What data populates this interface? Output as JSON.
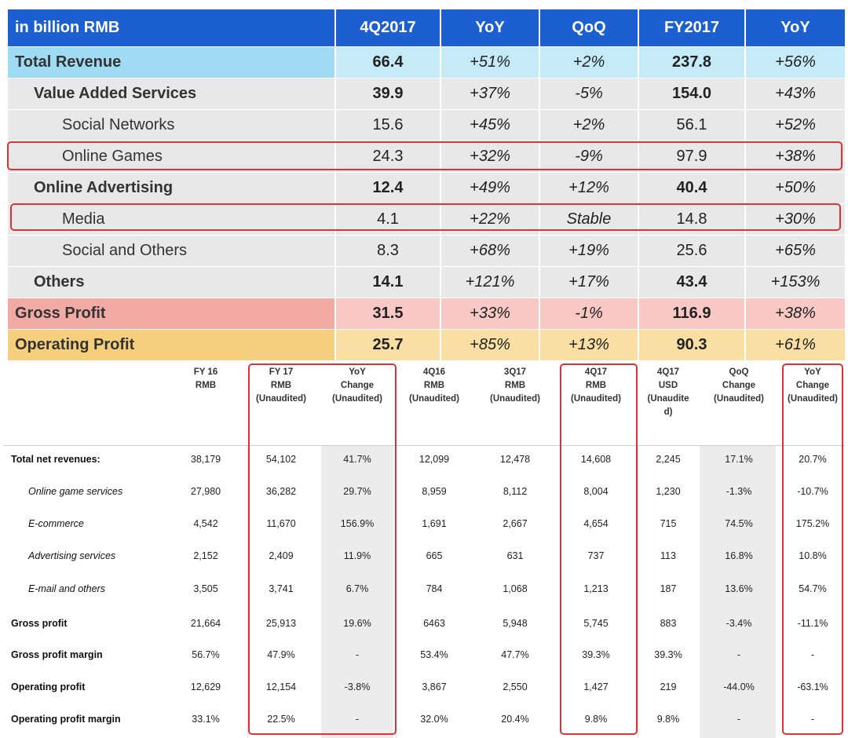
{
  "top_table": {
    "headers": [
      "in billion RMB",
      "4Q2017",
      "YoY",
      "QoQ",
      "FY2017",
      "YoY"
    ],
    "rows": [
      {
        "label": "Total Revenue",
        "q": "66.4",
        "yoy": "+51%",
        "qoq": "+2%",
        "fy": "237.8",
        "fyyoy": "+56%"
      },
      {
        "label": "Value Added Services",
        "q": "39.9",
        "yoy": "+37%",
        "qoq": "-5%",
        "fy": "154.0",
        "fyyoy": "+43%"
      },
      {
        "label": "Social Networks",
        "q": "15.6",
        "yoy": "+45%",
        "qoq": "+2%",
        "fy": "56.1",
        "fyyoy": "+52%"
      },
      {
        "label": "Online Games",
        "q": "24.3",
        "yoy": "+32%",
        "qoq": "-9%",
        "fy": "97.9",
        "fyyoy": "+38%"
      },
      {
        "label": "Online Advertising",
        "q": "12.4",
        "yoy": "+49%",
        "qoq": "+12%",
        "fy": "40.4",
        "fyyoy": "+50%"
      },
      {
        "label": "Media",
        "q": "4.1",
        "yoy": "+22%",
        "qoq": "Stable",
        "fy": "14.8",
        "fyyoy": "+30%"
      },
      {
        "label": "Social and Others",
        "q": "8.3",
        "yoy": "+68%",
        "qoq": "+19%",
        "fy": "25.6",
        "fyyoy": "+65%"
      },
      {
        "label": "Others",
        "q": "14.1",
        "yoy": "+121%",
        "qoq": "+17%",
        "fy": "43.4",
        "fyyoy": "+153%"
      },
      {
        "label": "Gross Profit",
        "q": "31.5",
        "yoy": "+33%",
        "qoq": "-1%",
        "fy": "116.9",
        "fyyoy": "+38%"
      },
      {
        "label": "Operating Profit",
        "q": "25.7",
        "yoy": "+85%",
        "qoq": "+13%",
        "fy": "90.3",
        "fyyoy": "+61%"
      }
    ]
  },
  "bottom_table": {
    "headers": [
      [
        "FY 16",
        "RMB"
      ],
      [
        "FY 17",
        "RMB",
        "(Unaudited)"
      ],
      [
        "YoY",
        "Change",
        "(Unaudited)"
      ],
      [
        "4Q16",
        "RMB",
        "(Unaudited)"
      ],
      [
        "3Q17",
        "RMB",
        "(Unaudited)"
      ],
      [
        "4Q17",
        "RMB",
        "(Unaudited)"
      ],
      [
        "4Q17",
        "USD",
        "(Unaudite",
        "d)"
      ],
      [
        "QoQ",
        "Change",
        "(Unaudited)"
      ],
      [
        "YoY",
        "Change",
        "(Unaudited)"
      ]
    ],
    "rows": [
      {
        "label": "Total net revenues:",
        "values": [
          "38,179",
          "54,102",
          "41.7%",
          "12,099",
          "12,478",
          "14,608",
          "2,245",
          "17.1%",
          "20.7%"
        ]
      },
      {
        "label": "Online game services",
        "values": [
          "27,980",
          "36,282",
          "29.7%",
          "8,959",
          "8,112",
          "8,004",
          "1,230",
          "-1.3%",
          "-10.7%"
        ]
      },
      {
        "label": "E-commerce",
        "values": [
          "4,542",
          "11,670",
          "156.9%",
          "1,691",
          "2,667",
          "4,654",
          "715",
          "74.5%",
          "175.2%"
        ]
      },
      {
        "label": "Advertising services",
        "values": [
          "2,152",
          "2,409",
          "11.9%",
          "665",
          "631",
          "737",
          "113",
          "16.8%",
          "10.8%"
        ]
      },
      {
        "label": "E-mail and others",
        "values": [
          "3,505",
          "3,741",
          "6.7%",
          "784",
          "1,068",
          "1,213",
          "187",
          "13.6%",
          "54.7%"
        ]
      },
      {
        "label": "Gross profit",
        "values": [
          "21,664",
          "25,913",
          "19.6%",
          "6463",
          "5,948",
          "5,745",
          "883",
          "-3.4%",
          "-11.1%"
        ]
      },
      {
        "label": "Gross profit margin",
        "values": [
          "56.7%",
          "47.9%",
          "-",
          "53.4%",
          "47.7%",
          "39.3%",
          "39.3%",
          "-",
          "-"
        ]
      },
      {
        "label": "Operating profit",
        "values": [
          "12,629",
          "12,154",
          "-3.8%",
          "3,867",
          "2,550",
          "1,427",
          "219",
          "-44.0%",
          "-63.1%"
        ]
      },
      {
        "label": "Operating profit margin",
        "values": [
          "33.1%",
          "22.5%",
          "-",
          "32.0%",
          "20.4%",
          "9.8%",
          "9.8%",
          "-",
          "-"
        ]
      }
    ]
  }
}
